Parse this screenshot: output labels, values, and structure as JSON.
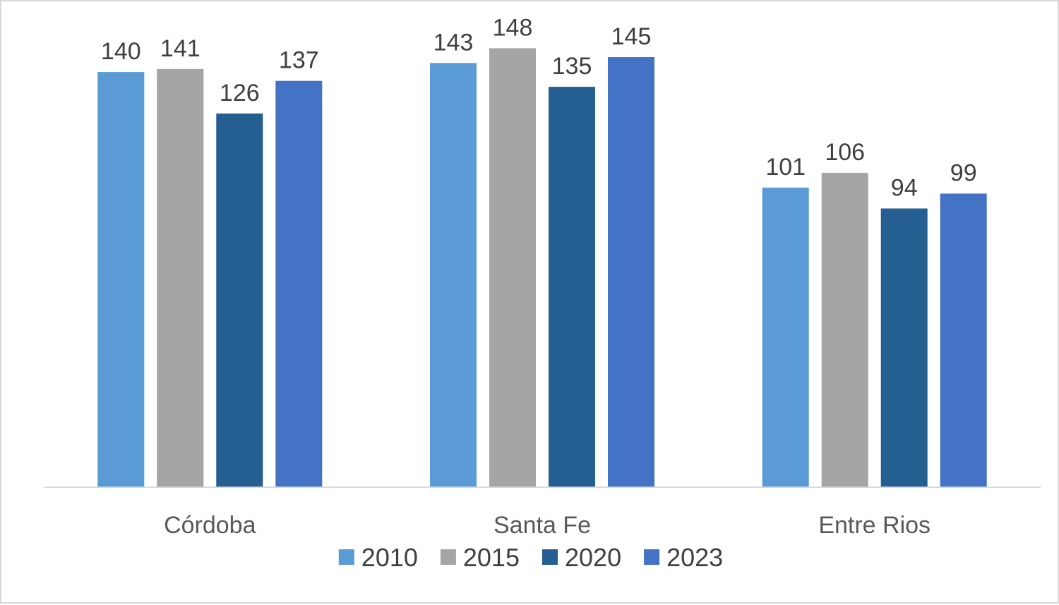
{
  "chart_data": {
    "type": "bar",
    "categories": [
      "Córdoba",
      "Santa Fe",
      "Entre Rios"
    ],
    "series": [
      {
        "name": "2010",
        "color": "#5b9bd5",
        "values": [
          140,
          143,
          101
        ]
      },
      {
        "name": "2015",
        "color": "#a5a5a5",
        "values": [
          141,
          148,
          106
        ]
      },
      {
        "name": "2020",
        "color": "#255e91",
        "values": [
          126,
          135,
          94
        ]
      },
      {
        "name": "2023",
        "color": "#4472c4",
        "values": [
          137,
          145,
          99
        ]
      }
    ],
    "ylim": [
      0,
      150
    ],
    "grid": false,
    "legend_position": "bottom",
    "axis_color": "#d9d9d9"
  }
}
